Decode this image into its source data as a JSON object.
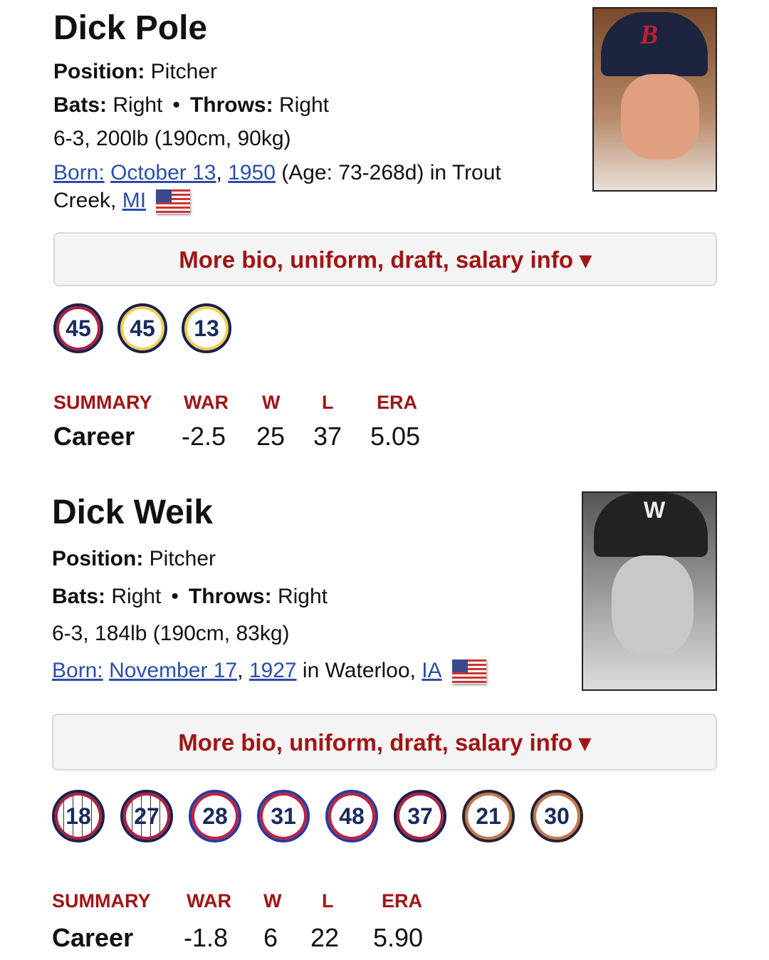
{
  "players": [
    {
      "name": "Dick Pole",
      "position_label": "Position:",
      "position": "Pitcher",
      "bats_label": "Bats:",
      "bats": "Right",
      "throws_label": "Throws:",
      "throws": "Right",
      "size": "6-3, 200lb (190cm, 90kg)",
      "born_label": "Born:",
      "born_month_day": "October 13",
      "born_year": "1950",
      "age": "(Age: 73-268d) in Trout",
      "birth_city": "Creek,",
      "birth_state": "MI",
      "cap_letter": "B",
      "more_info": "More bio, uniform, draft, salary info ▾",
      "uniforms": [
        {
          "number": "45",
          "outer": "#1a2050",
          "inner": "#b0203a"
        },
        {
          "number": "45",
          "outer": "#1a2050",
          "inner": "#f0d050"
        },
        {
          "number": "13",
          "outer": "#1a2050",
          "inner": "#f0d050"
        }
      ],
      "summary": {
        "headers": [
          "SUMMARY",
          "WAR",
          "W",
          "L",
          "ERA"
        ],
        "career": [
          "Career",
          "-2.5",
          "25",
          "37",
          "5.05"
        ]
      }
    },
    {
      "name": "Dick Weik",
      "position_label": "Position:",
      "position": "Pitcher",
      "bats_label": "Bats:",
      "bats": "Right",
      "throws_label": "Throws:",
      "throws": "Right",
      "size": "6-3, 184lb (190cm, 83kg)",
      "born_label": "Born:",
      "born_month_day": "November 17",
      "born_year": "1927",
      "birth_place_prefix": "in Waterloo,",
      "birth_state": "IA",
      "cap_letter": "W",
      "more_info": "More bio, uniform, draft, salary info ▾",
      "uniforms": [
        {
          "number": "18",
          "outer": "#1a2050",
          "inner": "#b0203a",
          "pinstripe": true
        },
        {
          "number": "27",
          "outer": "#1a2050",
          "inner": "#b0203a",
          "pinstripe": true
        },
        {
          "number": "28",
          "outer": "#2a3a9a",
          "inner": "#c02040"
        },
        {
          "number": "31",
          "outer": "#2a3a9a",
          "inner": "#c02040"
        },
        {
          "number": "48",
          "outer": "#2a3a9a",
          "inner": "#c02040"
        },
        {
          "number": "37",
          "outer": "#1a2050",
          "inner": "#b0203a"
        },
        {
          "number": "21",
          "outer": "#2a2030",
          "inner": "#c07a50"
        },
        {
          "number": "30",
          "outer": "#2a2030",
          "inner": "#c07a50"
        }
      ],
      "summary": {
        "headers": [
          "SUMMARY",
          "WAR",
          "W",
          "L",
          "ERA"
        ],
        "career": [
          "Career",
          "-1.8",
          "6",
          "22",
          "5.90"
        ]
      }
    }
  ]
}
